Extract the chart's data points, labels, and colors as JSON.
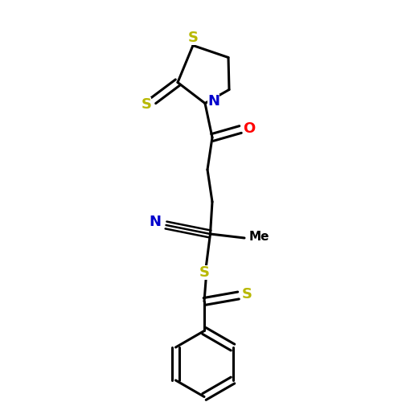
{
  "background_color": "#ffffff",
  "bond_color": "#000000",
  "bond_width": 2.2,
  "atom_colors": {
    "S": "#b8b800",
    "N": "#0000cc",
    "O": "#ff0000",
    "C": "#000000"
  },
  "figsize": [
    5.0,
    5.0
  ],
  "dpi": 100,
  "xlim": [
    0,
    10
  ],
  "ylim": [
    0,
    10
  ]
}
